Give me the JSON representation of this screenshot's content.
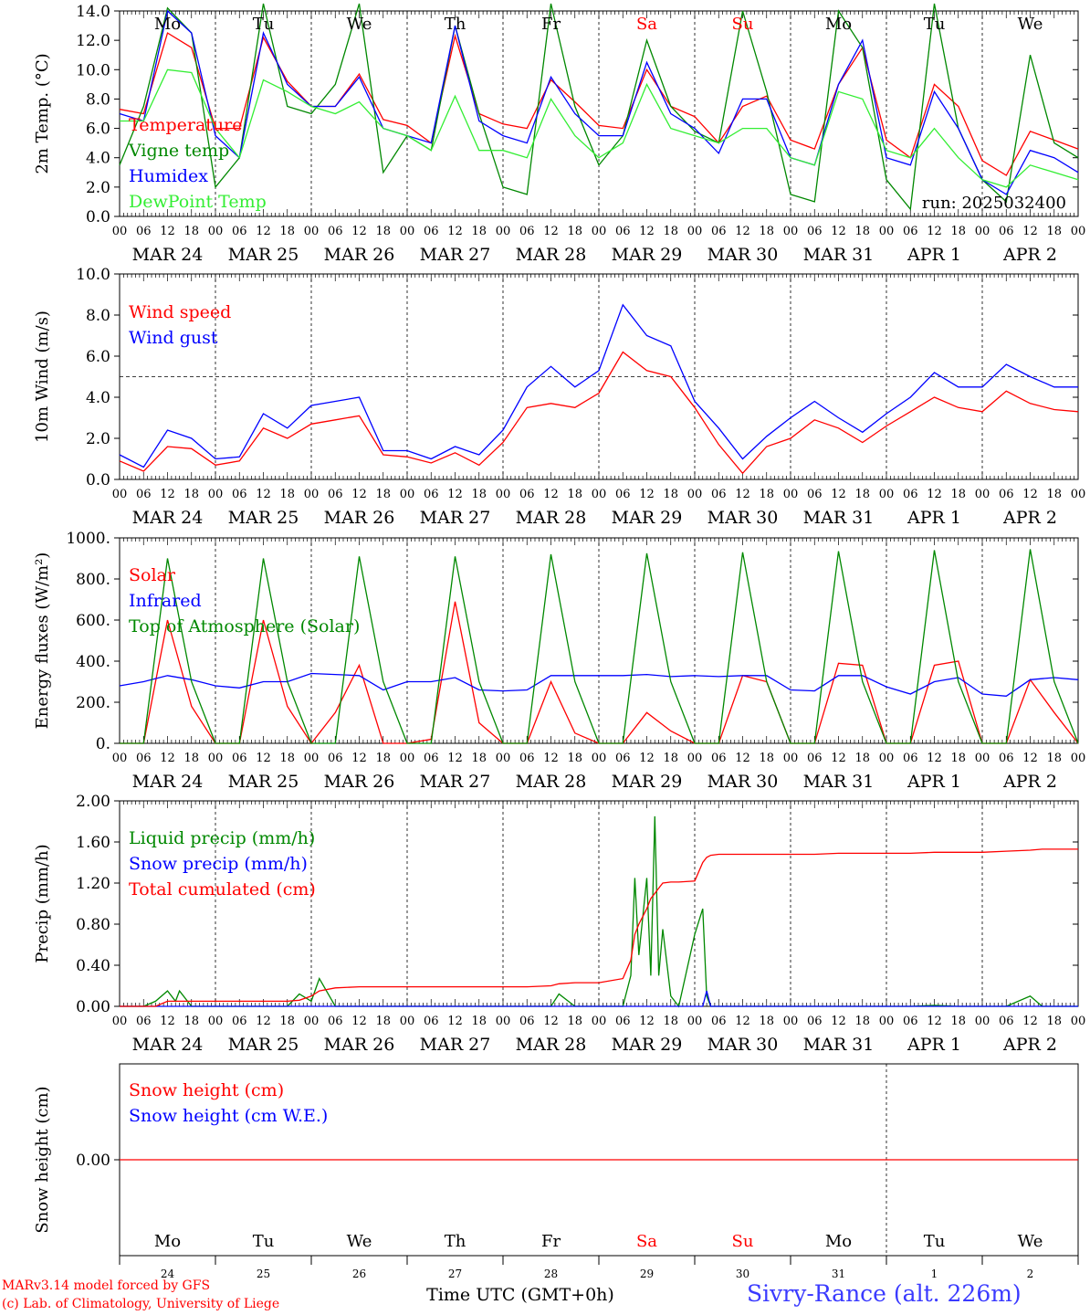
{
  "chart_data": [
    {
      "type": "line",
      "ylabel": "2m Temp. (°C)",
      "ylim": [
        0,
        14
      ],
      "yticks": [
        "0.0",
        "2.0",
        "4.0",
        "6.0",
        "8.0",
        "10.0",
        "12.0",
        "14.0"
      ],
      "legend": [
        "Temperature",
        "Vigne temp",
        "Humidex",
        "DewPoint Temp"
      ],
      "annotation": "run: 2025032400",
      "x_hours": [
        0,
        6,
        12,
        18,
        24,
        30,
        36,
        42,
        48,
        54,
        60,
        66,
        72,
        78,
        84,
        90,
        96,
        102,
        108,
        114,
        120,
        126,
        132,
        138,
        144,
        150,
        156,
        162,
        168,
        174,
        180,
        186,
        192,
        198,
        204,
        210,
        216,
        222,
        228,
        234,
        240
      ],
      "series": [
        {
          "name": "Temperature",
          "color": "#ff0000",
          "values": [
            7.3,
            7.0,
            12.5,
            11.5,
            6.0,
            6.0,
            12.2,
            9.2,
            7.5,
            7.5,
            9.7,
            6.6,
            6.2,
            5.0,
            12.3,
            7.0,
            6.3,
            6.0,
            9.3,
            7.8,
            6.2,
            6.0,
            10.0,
            7.5,
            6.8,
            5.0,
            7.5,
            8.2,
            5.2,
            4.6,
            9.0,
            11.5,
            5.2,
            4.0,
            9.0,
            7.5,
            3.8,
            2.8,
            5.8,
            5.2,
            4.6
          ]
        },
        {
          "name": "Vigne temp",
          "color": "#008800",
          "values": [
            3.5,
            7.5,
            14.2,
            12.5,
            2.0,
            4.0,
            14.5,
            7.5,
            7.0,
            9.0,
            14.5,
            3.0,
            5.5,
            4.5,
            13.0,
            7.0,
            2.0,
            1.5,
            14.5,
            7.5,
            3.5,
            5.5,
            12.0,
            7.5,
            5.8,
            5.0,
            14.0,
            8.5,
            1.5,
            1.0,
            14.0,
            11.5,
            2.5,
            0.5,
            14.5,
            6.0,
            2.5,
            1.0,
            11.0,
            5.0,
            4.0
          ]
        },
        {
          "name": "Humidex",
          "color": "#0000ff",
          "values": [
            7.0,
            6.5,
            14.0,
            12.5,
            5.5,
            4.0,
            12.5,
            9.0,
            7.5,
            7.5,
            9.5,
            6.0,
            5.5,
            5.0,
            13.0,
            6.5,
            5.5,
            5.0,
            9.5,
            7.0,
            5.5,
            5.5,
            10.5,
            7.0,
            6.0,
            4.3,
            8.0,
            8.0,
            4.0,
            3.5,
            9.0,
            12.0,
            4.0,
            3.5,
            8.5,
            6.0,
            2.5,
            1.5,
            4.5,
            4.0,
            3.0
          ]
        },
        {
          "name": "DewPoint Temp",
          "color": "#33ee33",
          "values": [
            6.5,
            6.5,
            10.0,
            9.8,
            6.0,
            4.0,
            9.3,
            8.5,
            7.5,
            7.0,
            7.8,
            6.0,
            5.5,
            4.5,
            8.2,
            4.5,
            4.5,
            4.0,
            8.0,
            5.5,
            4.0,
            5.0,
            9.0,
            6.0,
            5.5,
            5.0,
            6.0,
            6.0,
            4.0,
            3.5,
            8.5,
            8.0,
            4.5,
            4.0,
            6.0,
            4.0,
            2.5,
            2.0,
            3.5,
            3.0,
            2.5
          ]
        }
      ]
    },
    {
      "type": "line",
      "ylabel": "10m Wind (m/s)",
      "ylim": [
        0,
        10
      ],
      "yticks": [
        "0.0",
        "2.0",
        "4.0",
        "6.0",
        "8.0",
        "10.0"
      ],
      "legend": [
        "Wind speed",
        "Wind gust"
      ],
      "reference_line": 5,
      "x_hours": [
        0,
        6,
        12,
        18,
        24,
        30,
        36,
        42,
        48,
        54,
        60,
        66,
        72,
        78,
        84,
        90,
        96,
        102,
        108,
        114,
        120,
        126,
        132,
        138,
        144,
        150,
        156,
        162,
        168,
        174,
        180,
        186,
        192,
        198,
        204,
        210,
        216,
        222,
        228,
        234,
        240
      ],
      "series": [
        {
          "name": "Wind speed",
          "color": "#ff0000",
          "values": [
            0.9,
            0.4,
            1.6,
            1.5,
            0.7,
            0.9,
            2.5,
            2.0,
            2.7,
            2.9,
            3.1,
            1.2,
            1.1,
            0.8,
            1.3,
            0.7,
            1.8,
            3.5,
            3.7,
            3.5,
            4.2,
            6.2,
            5.3,
            5.0,
            3.5,
            1.7,
            0.3,
            1.6,
            2.0,
            2.9,
            2.5,
            1.8,
            2.6,
            3.3,
            4.0,
            3.5,
            3.3,
            4.3,
            3.7,
            3.4,
            3.3
          ]
        },
        {
          "name": "Wind gust",
          "color": "#0000ff",
          "values": [
            1.2,
            0.6,
            2.4,
            2.0,
            1.0,
            1.1,
            3.2,
            2.5,
            3.6,
            3.8,
            4.0,
            1.4,
            1.4,
            1.0,
            1.6,
            1.2,
            2.4,
            4.5,
            5.5,
            4.5,
            5.3,
            8.5,
            7.0,
            6.5,
            3.8,
            2.5,
            1.0,
            2.1,
            3.0,
            3.8,
            3.0,
            2.3,
            3.2,
            4.0,
            5.2,
            4.5,
            4.5,
            5.6,
            5.0,
            4.5,
            4.5
          ]
        }
      ]
    },
    {
      "type": "line",
      "ylabel": "Energy fluxes (W/m²)",
      "ylim": [
        0,
        1000
      ],
      "yticks": [
        "0.",
        "200.",
        "400.",
        "600.",
        "800.",
        "1000."
      ],
      "legend": [
        "Solar",
        "Infrared",
        "Top of Atmosphere (Solar)"
      ],
      "x_hours": [
        0,
        6,
        12,
        18,
        24,
        30,
        36,
        42,
        48,
        54,
        60,
        66,
        72,
        78,
        84,
        90,
        96,
        102,
        108,
        114,
        120,
        126,
        132,
        138,
        144,
        150,
        156,
        162,
        168,
        174,
        180,
        186,
        192,
        198,
        204,
        210,
        216,
        222,
        228,
        234,
        240
      ],
      "series": [
        {
          "name": "Solar",
          "color": "#ff0000",
          "values": [
            0,
            0,
            600,
            180,
            0,
            0,
            600,
            180,
            0,
            150,
            380,
            0,
            0,
            20,
            690,
            100,
            0,
            0,
            300,
            50,
            0,
            0,
            150,
            60,
            0,
            0,
            330,
            300,
            0,
            0,
            390,
            380,
            0,
            0,
            380,
            400,
            0,
            0,
            310,
            150,
            0
          ]
        },
        {
          "name": "Infrared",
          "color": "#0000ff",
          "values": [
            280,
            300,
            330,
            310,
            280,
            270,
            300,
            300,
            340,
            335,
            330,
            260,
            300,
            300,
            320,
            260,
            255,
            260,
            330,
            330,
            330,
            330,
            335,
            325,
            330,
            325,
            330,
            330,
            260,
            255,
            330,
            330,
            275,
            240,
            300,
            320,
            240,
            230,
            310,
            320,
            310
          ]
        },
        {
          "name": "Top of Atmosphere (Solar)",
          "color": "#008800",
          "values": [
            0,
            0,
            900,
            300,
            0,
            0,
            900,
            300,
            0,
            0,
            910,
            300,
            0,
            0,
            910,
            300,
            0,
            0,
            920,
            300,
            0,
            0,
            925,
            300,
            0,
            0,
            930,
            300,
            0,
            0,
            935,
            300,
            0,
            0,
            940,
            300,
            0,
            0,
            945,
            300,
            0
          ]
        }
      ]
    },
    {
      "type": "line",
      "ylabel": "Precip (mm/h)",
      "ylim": [
        0,
        2
      ],
      "yticks": [
        "0.00",
        "0.40",
        "0.80",
        "1.20",
        "1.60",
        "2.00"
      ],
      "legend": [
        "Liquid precip (mm/h)",
        "Snow precip (mm/h)",
        "Total cumulated (cm)"
      ],
      "x_hours": [
        0,
        6,
        9,
        12,
        14,
        15,
        18,
        24,
        30,
        36,
        42,
        45,
        48,
        50,
        54,
        60,
        66,
        72,
        78,
        84,
        90,
        96,
        102,
        108,
        110,
        114,
        120,
        126,
        128,
        129,
        130,
        132,
        133,
        134,
        135,
        136,
        138,
        140,
        144,
        146,
        147,
        148,
        150,
        156,
        162,
        168,
        174,
        180,
        186,
        192,
        198,
        204,
        210,
        216,
        222,
        228,
        231,
        234,
        240
      ],
      "series": [
        {
          "name": "Liquid precip (mm/h)",
          "color": "#008800",
          "values": [
            0,
            0,
            0.05,
            0.15,
            0.05,
            0.15,
            0,
            0,
            0,
            0,
            0,
            0.12,
            0.05,
            0.27,
            0,
            0,
            0,
            0,
            0,
            0,
            0,
            0,
            0,
            0,
            0.12,
            0,
            0,
            0,
            0.3,
            1.25,
            0.5,
            1.25,
            0.3,
            1.85,
            0.3,
            0.75,
            0.1,
            0,
            0.7,
            0.95,
            0.1,
            0,
            0,
            0,
            0,
            0,
            0,
            0,
            0,
            0,
            0,
            0.01,
            0,
            0,
            0,
            0.1,
            0,
            0,
            0
          ]
        },
        {
          "name": "Snow precip (mm/h)",
          "color": "#0000ff",
          "values": [
            0,
            0,
            0,
            0,
            0,
            0,
            0,
            0,
            0,
            0,
            0,
            0,
            0,
            0,
            0,
            0,
            0,
            0,
            0,
            0,
            0,
            0,
            0,
            0,
            0,
            0,
            0,
            0,
            0,
            0,
            0,
            0,
            0,
            0,
            0,
            0,
            0,
            0,
            0,
            0,
            0.15,
            0,
            0,
            0,
            0,
            0,
            0,
            0,
            0,
            0,
            0,
            0,
            0,
            0,
            0,
            0,
            0,
            0,
            0
          ]
        },
        {
          "name": "Total cumulated (cm)",
          "color": "#ff0000",
          "values": [
            0,
            0,
            0,
            0.05,
            0.05,
            0.05,
            0.05,
            0.05,
            0.05,
            0.05,
            0.05,
            0.06,
            0.1,
            0.15,
            0.18,
            0.19,
            0.19,
            0.19,
            0.19,
            0.19,
            0.19,
            0.19,
            0.19,
            0.2,
            0.22,
            0.23,
            0.23,
            0.27,
            0.45,
            0.7,
            0.8,
            0.95,
            1.05,
            1.1,
            1.15,
            1.2,
            1.21,
            1.21,
            1.22,
            1.4,
            1.45,
            1.47,
            1.48,
            1.48,
            1.48,
            1.48,
            1.48,
            1.49,
            1.49,
            1.49,
            1.49,
            1.5,
            1.5,
            1.5,
            1.51,
            1.52,
            1.53,
            1.53,
            1.53
          ]
        }
      ]
    },
    {
      "type": "line",
      "ylabel": "Snow height (cm)",
      "yticks": [
        "0.00"
      ],
      "legend": [
        "Snow height (cm)",
        "Snow height (cm W.E.)"
      ],
      "x_hours": [
        0,
        240
      ],
      "series": [
        {
          "name": "Snow height (cm)",
          "color": "#ff0000",
          "values": [
            0,
            0
          ]
        }
      ]
    }
  ],
  "hour_labels": [
    "00",
    "06",
    "12",
    "18"
  ],
  "hour_label_end": "00",
  "date_labels": [
    "MAR 24",
    "MAR 25",
    "MAR 26",
    "MAR 27",
    "MAR 28",
    "MAR 29",
    "MAR 30",
    "MAR 31",
    "APR  1",
    "APR  2"
  ],
  "weekdays": [
    "Mo",
    "Tu",
    "We",
    "Th",
    "Fr",
    "Sa",
    "Su",
    "Mo",
    "Tu",
    "We"
  ],
  "weekend_color": "#ff0000",
  "day_numbers": [
    "24",
    "25",
    "26",
    "27",
    "28",
    "29",
    "30",
    "31",
    "1",
    "2"
  ],
  "xlabel": "Time UTC (GMT+0h)",
  "footer": {
    "credit_line1": "MARv3.14 model forced by GFS",
    "credit_line2": "(c) Lab. of Climatology, University of Liege",
    "station": "Sivry-Rance (alt. 226m)"
  }
}
